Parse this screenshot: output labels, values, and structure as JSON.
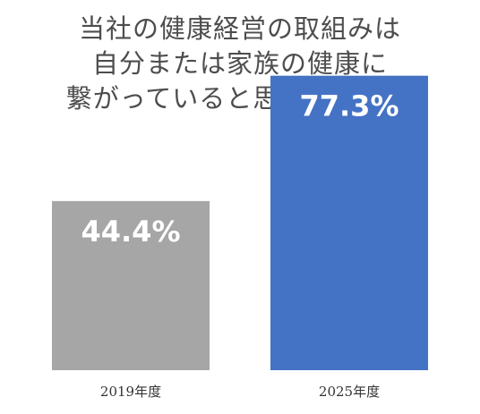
{
  "chart_data": {
    "type": "bar",
    "title_lines": [
      "当社の健康経営の取組みは",
      "自分または家族の健康に",
      "繋がっていると思いますか？"
    ],
    "categories": [
      "2019年度",
      "2025年度"
    ],
    "values": [
      44.4,
      77.3
    ],
    "data_labels": [
      "44.4%",
      "77.3%"
    ],
    "colors": [
      "#a6a6a6",
      "#4472c4"
    ],
    "ylim": [
      0,
      100
    ],
    "grid": false,
    "legend": "none"
  }
}
